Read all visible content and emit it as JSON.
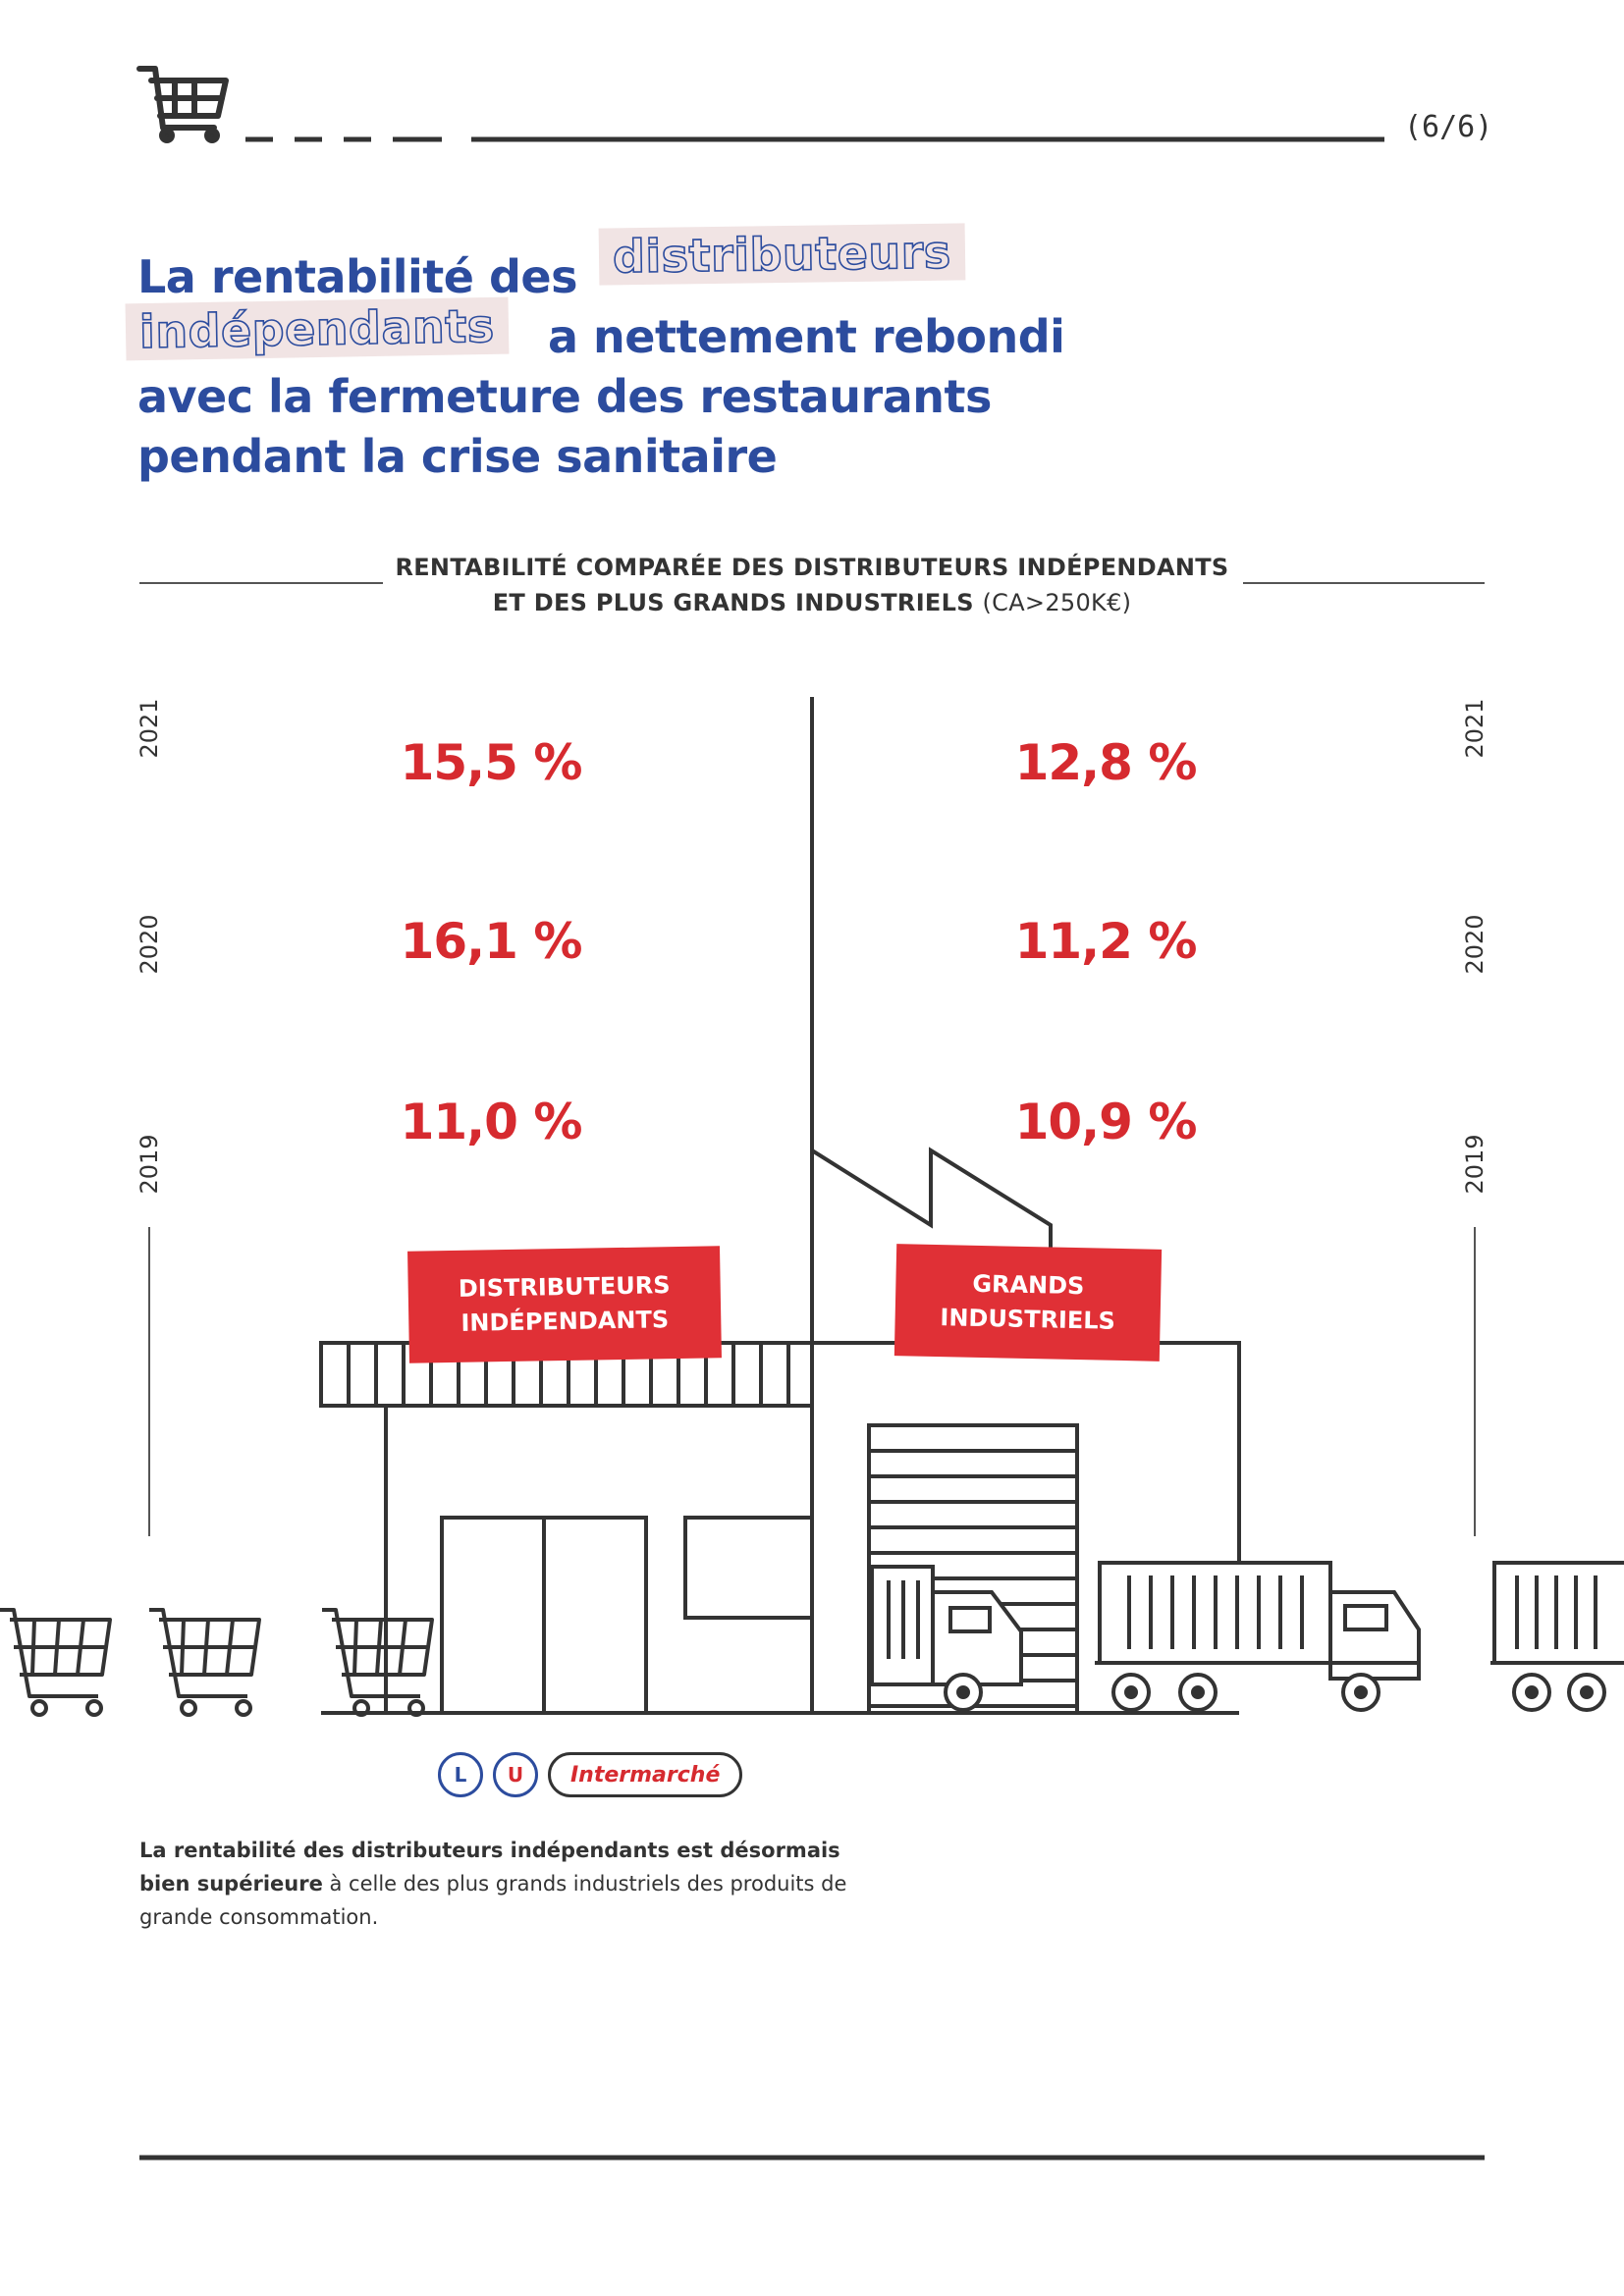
{
  "header": {
    "page_number": "(6/6)",
    "cart_icon": "shopping-cart-icon"
  },
  "title": {
    "part1": "La rentabilité des",
    "highlight1": "distributeurs",
    "highlight2": "indépendants",
    "part2": "a nettement rebondi",
    "line3": "avec la fermeture des restaurants",
    "line4": "pendant la crise sanitaire"
  },
  "chart_data": {
    "type": "table",
    "title": "RENTABILITÉ COMPARÉE DES DISTRIBUTEURS INDÉPENDANTS ET DES PLUS GRANDS INDUSTRIELS",
    "title_line1": "RENTABILITÉ COMPARÉE DES DISTRIBUTEURS INDÉPENDANTS",
    "title_line2": "ET DES PLUS GRANDS INDUSTRIELS",
    "title_note": "(CA>250K€)",
    "years": [
      "2021",
      "2020",
      "2019"
    ],
    "series": [
      {
        "name": "DISTRIBUTEURS INDÉPENDANTS",
        "values": [
          15.5,
          16.1,
          11.0
        ],
        "labels": [
          "15,5 %",
          "16,1 %",
          "11,0 %"
        ]
      },
      {
        "name": "GRANDS INDUSTRIELS",
        "values": [
          12.8,
          11.2,
          10.9
        ],
        "labels": [
          "12,8 %",
          "11,2 %",
          "10,9 %"
        ]
      }
    ],
    "value_color": "#d62a2f"
  },
  "logos": {
    "leclerc": "L",
    "systeme_u": "U",
    "intermarche": "Intermarché"
  },
  "caption": {
    "bold": "La rentabilité des distributeurs indépendants est désormais bien supérieure",
    "rest": " à celle des plus grands industriels des produits de grande consommation."
  },
  "colors": {
    "title_blue": "#2c4c9e",
    "accent_red": "#e03036",
    "line_dark": "#333333"
  }
}
